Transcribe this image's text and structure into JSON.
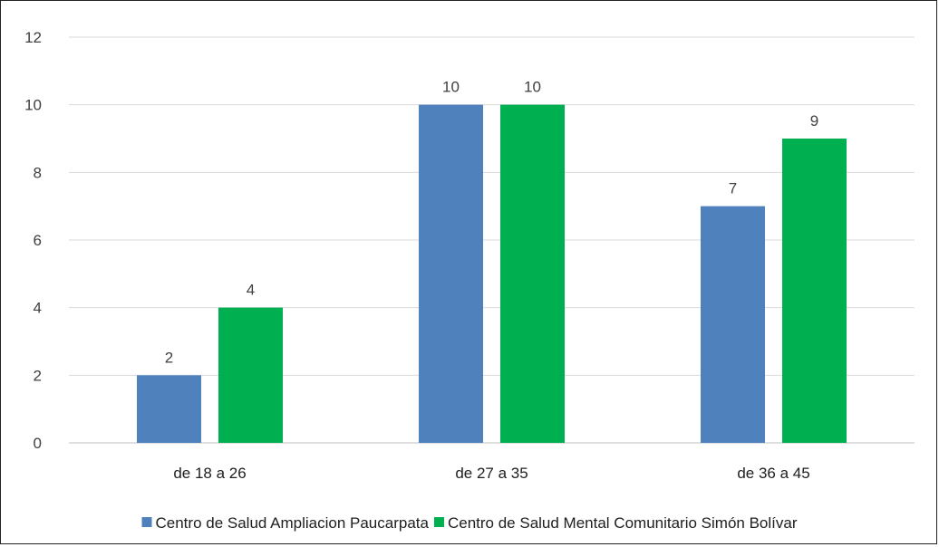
{
  "chart_data": {
    "type": "bar",
    "categories": [
      "de 18 a 26",
      "de 27 a 35",
      "de 36 a 45"
    ],
    "series": [
      {
        "name": "Centro de Salud Ampliacion Paucarpata",
        "values": [
          2,
          10,
          7
        ],
        "color": "#4f81bd"
      },
      {
        "name": "Centro de Salud Mental Comunitario Simón Bolívar",
        "values": [
          4,
          10,
          9
        ],
        "color": "#00b050"
      }
    ],
    "ylim": [
      0,
      12
    ],
    "yticks": [
      "0",
      "2",
      "4",
      "6",
      "8",
      "10",
      "12"
    ],
    "grid": true,
    "legend": "bottom",
    "data_labels": true
  }
}
